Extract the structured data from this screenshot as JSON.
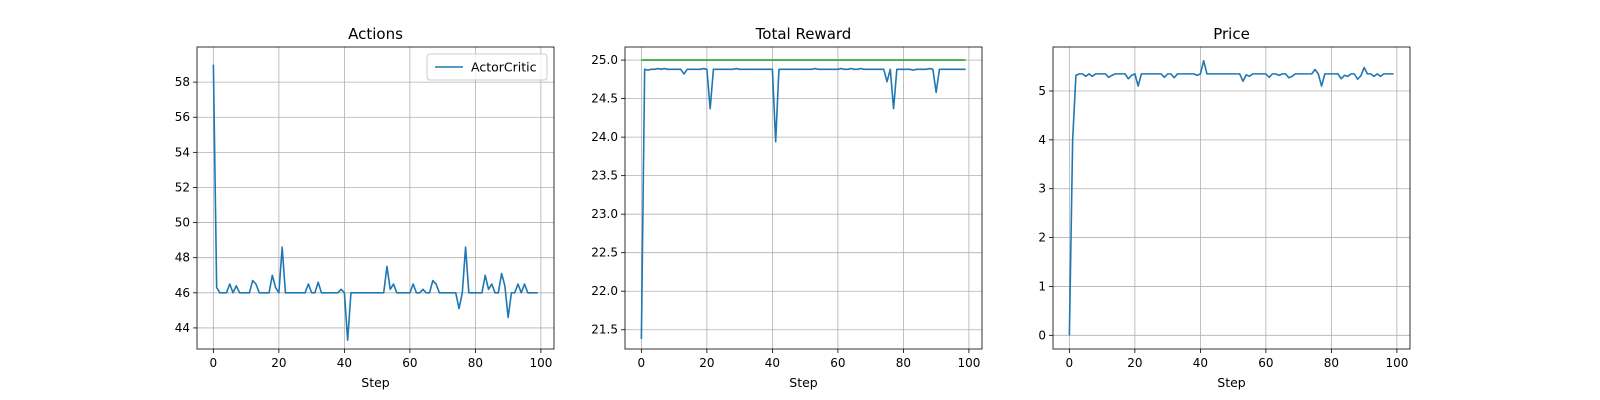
{
  "chart_data": [
    {
      "type": "line",
      "title": "Actions",
      "xlabel": "Step",
      "ylabel": "",
      "xlim": [
        -5,
        104
      ],
      "ylim": [
        42.8,
        60.0
      ],
      "xticks": [
        0,
        20,
        40,
        60,
        80,
        100
      ],
      "yticks": [
        44,
        46,
        48,
        50,
        52,
        54,
        56,
        58
      ],
      "grid": true,
      "legend": "top-right",
      "series": [
        {
          "name": "ActorCritic",
          "color": "#1f77b4",
          "x": [
            0,
            1,
            2,
            3,
            4,
            5,
            6,
            7,
            8,
            9,
            10,
            11,
            12,
            13,
            14,
            15,
            16,
            17,
            18,
            19,
            20,
            21,
            22,
            23,
            24,
            25,
            26,
            27,
            28,
            29,
            30,
            31,
            32,
            33,
            34,
            35,
            36,
            37,
            38,
            39,
            40,
            41,
            42,
            43,
            44,
            45,
            46,
            47,
            48,
            49,
            50,
            51,
            52,
            53,
            54,
            55,
            56,
            57,
            58,
            59,
            60,
            61,
            62,
            63,
            64,
            65,
            66,
            67,
            68,
            69,
            70,
            71,
            72,
            73,
            74,
            75,
            76,
            77,
            78,
            79,
            80,
            81,
            82,
            83,
            84,
            85,
            86,
            87,
            88,
            89,
            90,
            91,
            92,
            93,
            94,
            95,
            96,
            97,
            98,
            99
          ],
          "y": [
            59.0,
            46.3,
            46.0,
            46.0,
            46.0,
            46.5,
            46.0,
            46.4,
            46.0,
            46.0,
            46.0,
            46.0,
            46.7,
            46.5,
            46.0,
            46.0,
            46.0,
            46.0,
            47.0,
            46.3,
            46.0,
            48.6,
            46.0,
            46.0,
            46.0,
            46.0,
            46.0,
            46.0,
            46.0,
            46.5,
            46.0,
            46.0,
            46.6,
            46.0,
            46.0,
            46.0,
            46.0,
            46.0,
            46.0,
            46.2,
            46.0,
            43.3,
            46.0,
            46.0,
            46.0,
            46.0,
            46.0,
            46.0,
            46.0,
            46.0,
            46.0,
            46.0,
            46.0,
            47.5,
            46.2,
            46.5,
            46.0,
            46.0,
            46.0,
            46.0,
            46.0,
            46.5,
            46.0,
            46.0,
            46.2,
            46.0,
            46.0,
            46.7,
            46.5,
            46.0,
            46.0,
            46.0,
            46.0,
            46.0,
            46.0,
            45.1,
            46.0,
            48.6,
            46.0,
            46.0,
            46.0,
            46.0,
            46.0,
            47.0,
            46.2,
            46.5,
            46.0,
            46.0,
            47.1,
            46.4,
            44.6,
            46.0,
            46.0,
            46.5,
            46.0,
            46.5,
            46.0,
            46.0,
            46.0,
            46.0
          ]
        }
      ]
    },
    {
      "type": "line",
      "title": "Total Reward",
      "xlabel": "Step",
      "ylabel": "",
      "xlim": [
        -5,
        104
      ],
      "ylim": [
        21.25,
        25.17
      ],
      "xticks": [
        0,
        20,
        40,
        60,
        80,
        100
      ],
      "yticks": [
        21.5,
        22.0,
        22.5,
        23.0,
        23.5,
        24.0,
        24.5,
        25.0
      ],
      "grid": true,
      "legend": "none",
      "series": [
        {
          "color": "#1f77b4",
          "x": [
            0,
            1,
            2,
            3,
            4,
            5,
            6,
            7,
            8,
            9,
            10,
            11,
            12,
            13,
            14,
            15,
            16,
            17,
            18,
            19,
            20,
            21,
            22,
            23,
            24,
            25,
            26,
            27,
            28,
            29,
            30,
            31,
            32,
            33,
            34,
            35,
            36,
            37,
            38,
            39,
            40,
            41,
            42,
            43,
            44,
            45,
            46,
            47,
            48,
            49,
            50,
            51,
            52,
            53,
            54,
            55,
            56,
            57,
            58,
            59,
            60,
            61,
            62,
            63,
            64,
            65,
            66,
            67,
            68,
            69,
            70,
            71,
            72,
            73,
            74,
            75,
            76,
            77,
            78,
            79,
            80,
            81,
            82,
            83,
            84,
            85,
            86,
            87,
            88,
            89,
            90,
            91,
            92,
            93,
            94,
            95,
            96,
            97,
            98,
            99
          ],
          "y": [
            21.38,
            24.88,
            24.87,
            24.88,
            24.88,
            24.89,
            24.88,
            24.89,
            24.88,
            24.88,
            24.88,
            24.88,
            24.88,
            24.82,
            24.88,
            24.88,
            24.88,
            24.88,
            24.88,
            24.89,
            24.88,
            24.37,
            24.88,
            24.88,
            24.88,
            24.88,
            24.88,
            24.88,
            24.88,
            24.89,
            24.88,
            24.88,
            24.88,
            24.88,
            24.88,
            24.88,
            24.88,
            24.88,
            24.88,
            24.88,
            24.88,
            23.94,
            24.88,
            24.88,
            24.88,
            24.88,
            24.88,
            24.88,
            24.88,
            24.88,
            24.88,
            24.88,
            24.88,
            24.89,
            24.88,
            24.88,
            24.88,
            24.88,
            24.88,
            24.88,
            24.88,
            24.89,
            24.88,
            24.88,
            24.89,
            24.88,
            24.88,
            24.89,
            24.88,
            24.88,
            24.88,
            24.88,
            24.88,
            24.88,
            24.88,
            24.72,
            24.88,
            24.37,
            24.88,
            24.88,
            24.88,
            24.88,
            24.88,
            24.87,
            24.88,
            24.88,
            24.88,
            24.88,
            24.89,
            24.88,
            24.58,
            24.88,
            24.88,
            24.88,
            24.88,
            24.88,
            24.88,
            24.88,
            24.88,
            24.88
          ]
        },
        {
          "color": "#2ca02c",
          "x": [
            0,
            99
          ],
          "y": [
            25.0,
            25.0
          ]
        }
      ]
    },
    {
      "type": "line",
      "title": "Price",
      "xlabel": "Step",
      "ylabel": "",
      "xlim": [
        -5,
        104
      ],
      "ylim": [
        -0.28,
        5.9
      ],
      "xticks": [
        0,
        20,
        40,
        60,
        80,
        100
      ],
      "yticks": [
        0,
        1,
        2,
        3,
        4,
        5
      ],
      "grid": true,
      "legend": "none",
      "series": [
        {
          "color": "#1f77b4",
          "x": [
            0,
            1,
            2,
            3,
            4,
            5,
            6,
            7,
            8,
            9,
            10,
            11,
            12,
            13,
            14,
            15,
            16,
            17,
            18,
            19,
            20,
            21,
            22,
            23,
            24,
            25,
            26,
            27,
            28,
            29,
            30,
            31,
            32,
            33,
            34,
            35,
            36,
            37,
            38,
            39,
            40,
            41,
            42,
            43,
            44,
            45,
            46,
            47,
            48,
            49,
            50,
            51,
            52,
            53,
            54,
            55,
            56,
            57,
            58,
            59,
            60,
            61,
            62,
            63,
            64,
            65,
            66,
            67,
            68,
            69,
            70,
            71,
            72,
            73,
            74,
            75,
            76,
            77,
            78,
            79,
            80,
            81,
            82,
            83,
            84,
            85,
            86,
            87,
            88,
            89,
            90,
            91,
            92,
            93,
            94,
            95,
            96,
            97,
            98,
            99
          ],
          "y": [
            0.0,
            4.0,
            5.32,
            5.35,
            5.35,
            5.3,
            5.35,
            5.3,
            5.35,
            5.35,
            5.35,
            5.35,
            5.28,
            5.32,
            5.35,
            5.35,
            5.35,
            5.35,
            5.25,
            5.32,
            5.35,
            5.1,
            5.35,
            5.35,
            5.35,
            5.35,
            5.35,
            5.35,
            5.35,
            5.28,
            5.35,
            5.35,
            5.27,
            5.35,
            5.35,
            5.35,
            5.35,
            5.35,
            5.35,
            5.32,
            5.35,
            5.62,
            5.35,
            5.35,
            5.35,
            5.35,
            5.35,
            5.35,
            5.35,
            5.35,
            5.35,
            5.35,
            5.35,
            5.2,
            5.33,
            5.3,
            5.35,
            5.35,
            5.35,
            5.35,
            5.35,
            5.28,
            5.35,
            5.35,
            5.32,
            5.35,
            5.35,
            5.27,
            5.3,
            5.35,
            5.35,
            5.35,
            5.35,
            5.35,
            5.35,
            5.44,
            5.35,
            5.1,
            5.35,
            5.35,
            5.35,
            5.35,
            5.35,
            5.25,
            5.32,
            5.3,
            5.35,
            5.35,
            5.24,
            5.31,
            5.48,
            5.35,
            5.35,
            5.3,
            5.35,
            5.3,
            5.35,
            5.35,
            5.35,
            5.35
          ]
        }
      ]
    }
  ]
}
